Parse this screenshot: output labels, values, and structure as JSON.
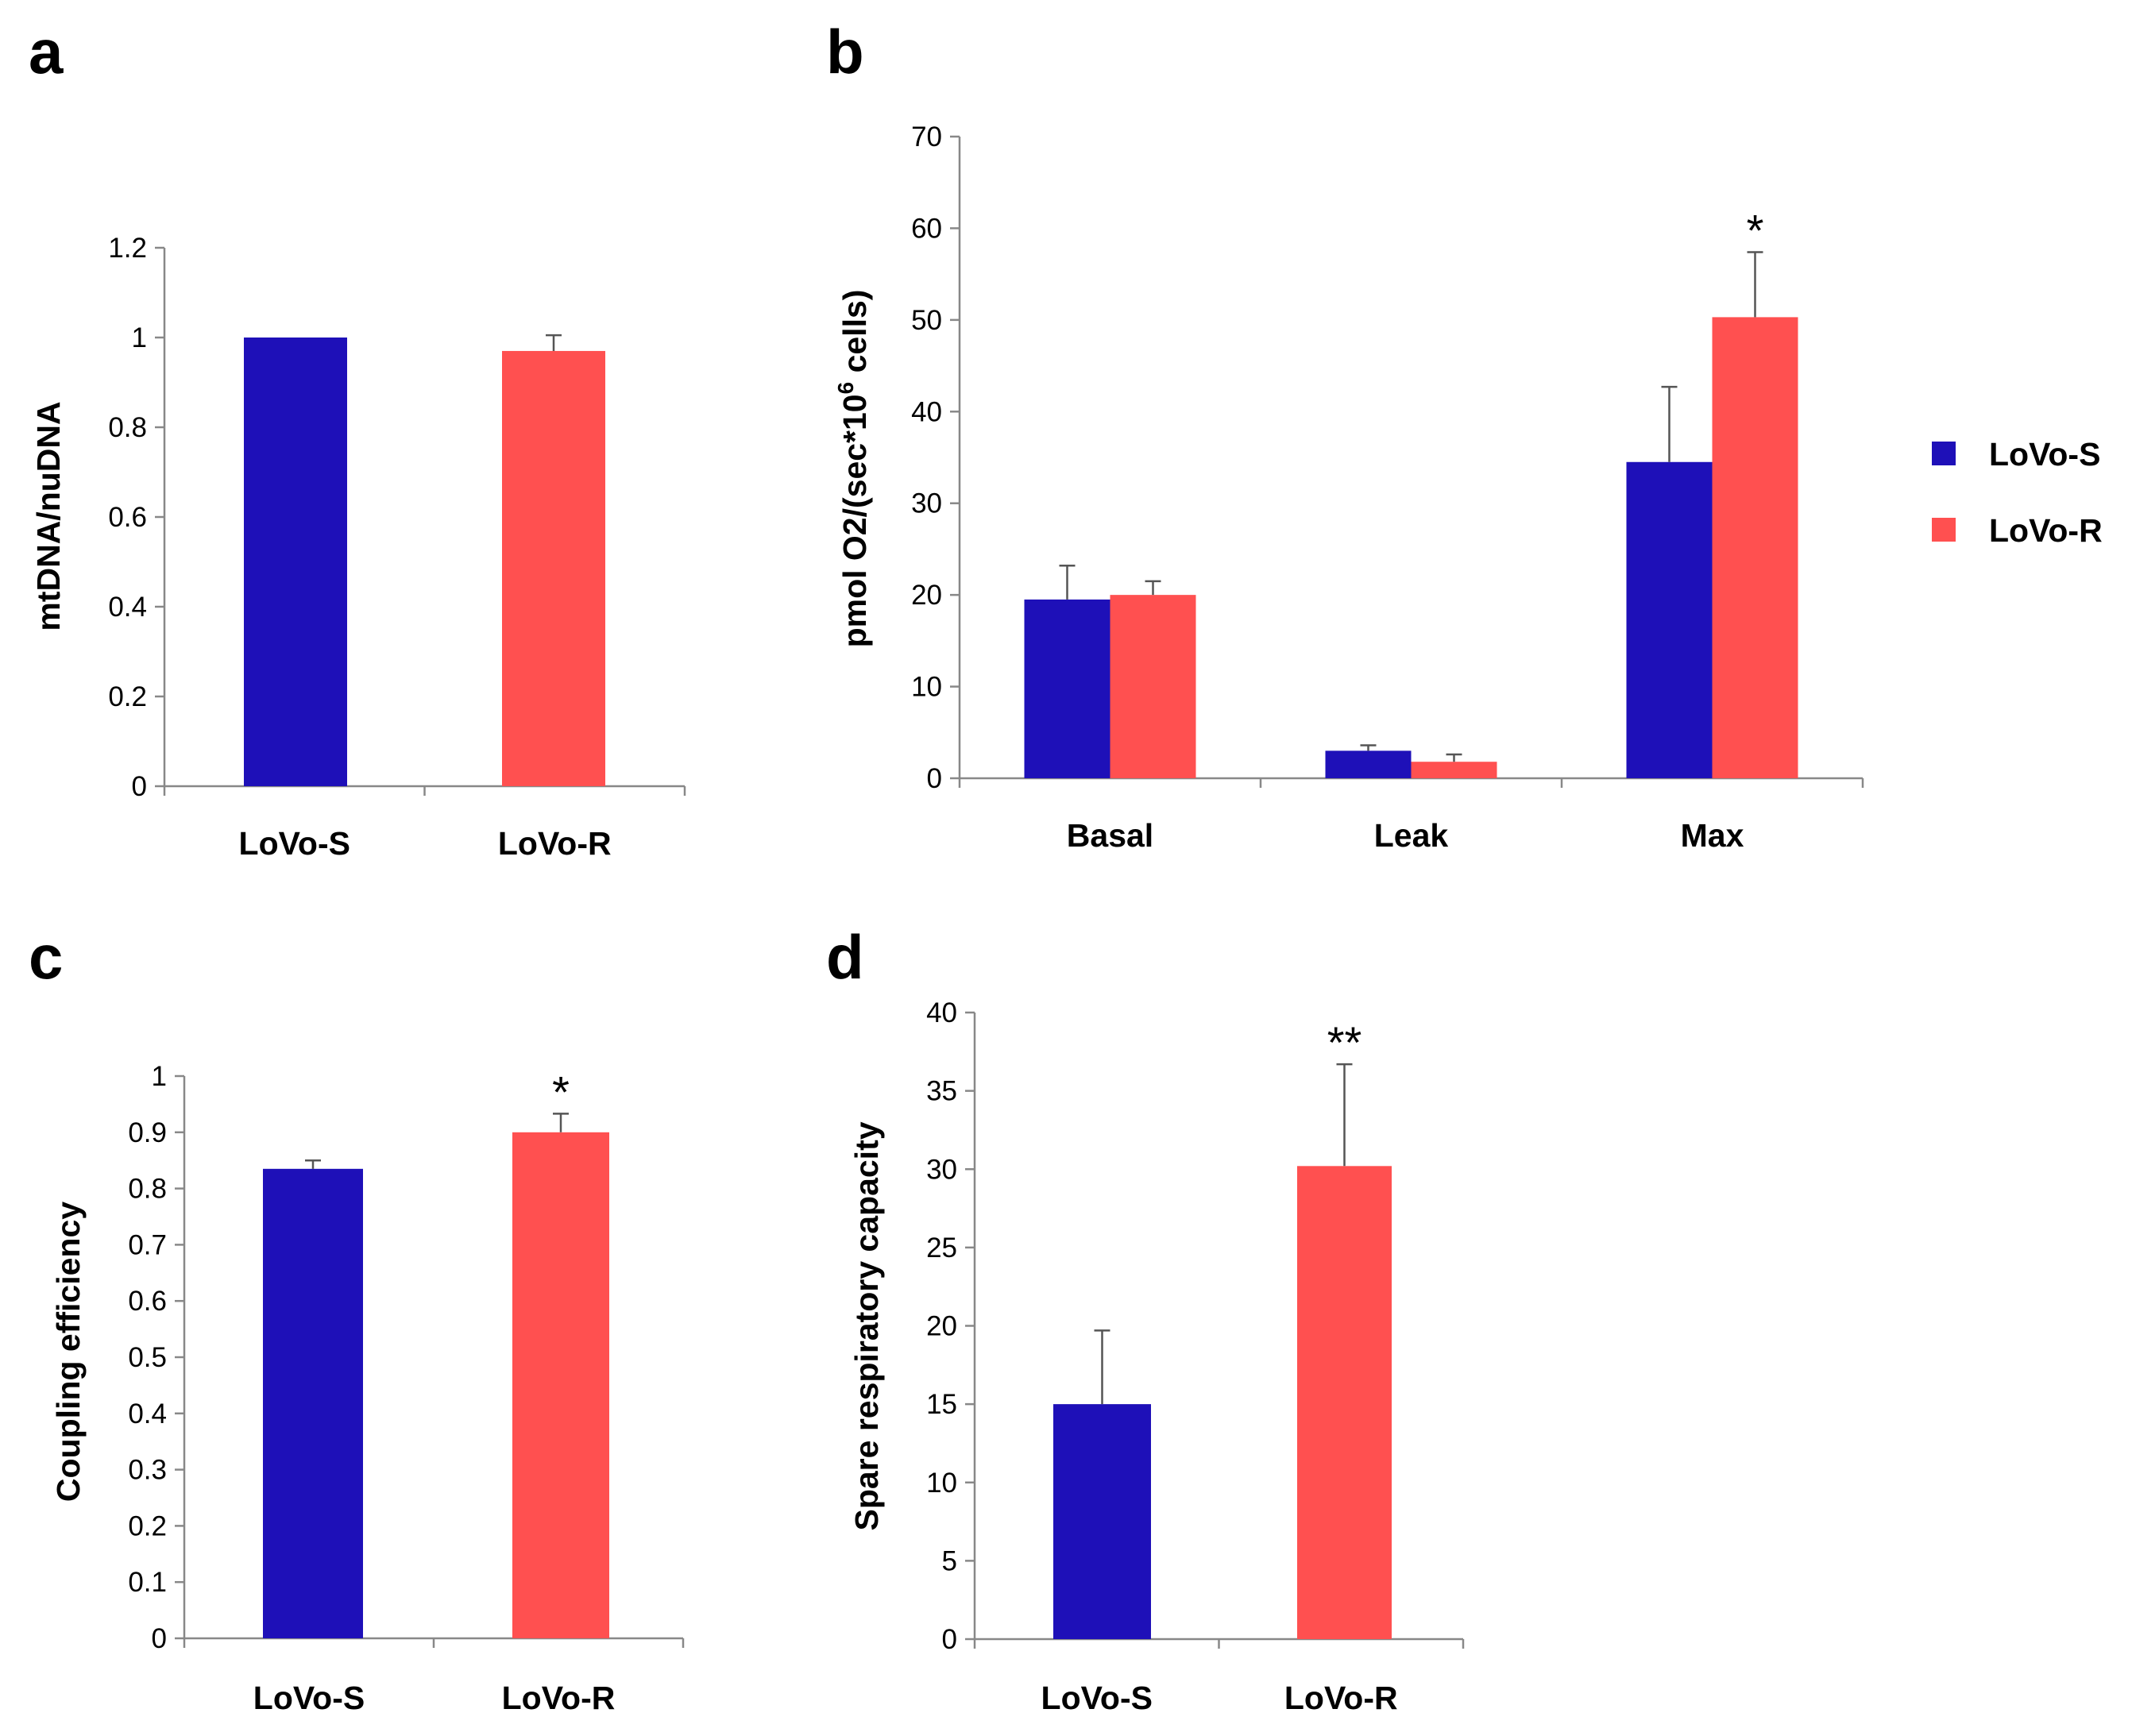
{
  "colors": {
    "lovo_s": "#1e10b8",
    "lovo_r": "#ff5050"
  },
  "chart_data": [
    {
      "id": "a",
      "type": "bar",
      "panel_label": "a",
      "ylabel": "mtDNA/nuDNA",
      "ylim": [
        0,
        1.2
      ],
      "ytick_labels": [
        "0",
        "0.2",
        "0.4",
        "0.6",
        "0.8",
        "1",
        "1.2"
      ],
      "categories": [
        "LoVo-S",
        "LoVo-R"
      ],
      "series": [
        {
          "name": "LoVo-S",
          "values": [
            1.0,
            null
          ],
          "errors": [
            0.0,
            null
          ]
        },
        {
          "name": "LoVo-R",
          "values": [
            null,
            0.97
          ],
          "errors": [
            null,
            0.035
          ]
        }
      ],
      "annotations": [
        "",
        ""
      ]
    },
    {
      "id": "b",
      "type": "bar",
      "panel_label": "b",
      "ylabel_main": "pmol O2/(sec*10",
      "ylabel_sup": "6",
      "ylabel_tail": " cells)",
      "ylim": [
        0,
        70
      ],
      "ytick_labels": [
        "0",
        "10",
        "20",
        "30",
        "40",
        "50",
        "60",
        "70"
      ],
      "categories": [
        "Basal",
        "Leak",
        "Max"
      ],
      "series": [
        {
          "name": "LoVo-S",
          "values": [
            19.5,
            3.0,
            34.5
          ],
          "errors": [
            3.7,
            0.6,
            8.2
          ]
        },
        {
          "name": "LoVo-R",
          "values": [
            20.0,
            1.8,
            50.3
          ],
          "errors": [
            1.5,
            0.8,
            7.1
          ]
        }
      ],
      "annotations": [
        "",
        "",
        "*"
      ],
      "legend": [
        "LoVo-S",
        "LoVo-R"
      ],
      "legend_position": "right"
    },
    {
      "id": "c",
      "type": "bar",
      "panel_label": "c",
      "ylabel": "Coupling efficiency",
      "ylim": [
        0,
        1
      ],
      "ytick_labels": [
        "0",
        "0.1",
        "0.2",
        "0.3",
        "0.4",
        "0.5",
        "0.6",
        "0.7",
        "0.8",
        "0.9",
        "1"
      ],
      "categories": [
        "LoVo-S",
        "LoVo-R"
      ],
      "series": [
        {
          "name": "LoVo-S",
          "values": [
            0.835,
            null
          ],
          "errors": [
            0.015,
            null
          ]
        },
        {
          "name": "LoVo-R",
          "values": [
            null,
            0.9
          ],
          "errors": [
            null,
            0.033
          ]
        }
      ],
      "annotations": [
        "",
        "*"
      ]
    },
    {
      "id": "d",
      "type": "bar",
      "panel_label": "d",
      "ylabel": "Spare respiratory capacity",
      "ylim": [
        0,
        40
      ],
      "ytick_labels": [
        "0",
        "5",
        "10",
        "15",
        "20",
        "25",
        "30",
        "35",
        "40"
      ],
      "categories": [
        "LoVo-S",
        "LoVo-R"
      ],
      "series": [
        {
          "name": "LoVo-S",
          "values": [
            15.0,
            null
          ],
          "errors": [
            4.7,
            null
          ]
        },
        {
          "name": "LoVo-R",
          "values": [
            null,
            30.2
          ],
          "errors": [
            null,
            6.5
          ]
        }
      ],
      "annotations": [
        "",
        "**"
      ]
    }
  ]
}
